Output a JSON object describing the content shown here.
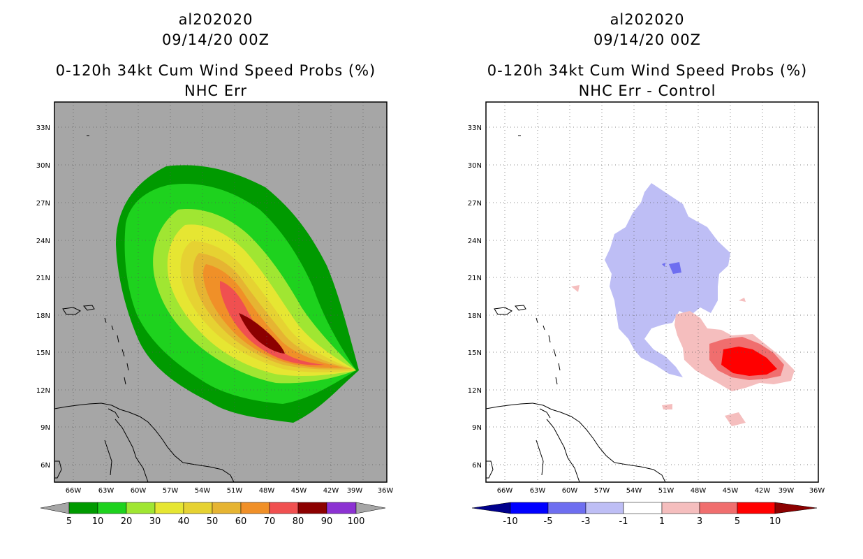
{
  "panels": [
    {
      "storm_id": "al202020",
      "datetime": "09/14/20 00Z",
      "product": "0-120h 34kt Cum Wind Speed Probs (%)",
      "subtitle": "NHC Err",
      "colorbar": {
        "labels": [
          "5",
          "10",
          "20",
          "30",
          "40",
          "50",
          "60",
          "70",
          "80",
          "90",
          "100"
        ],
        "colors": [
          "#009a00",
          "#1ed21e",
          "#a0e632",
          "#e6e632",
          "#e6d232",
          "#e6b432",
          "#f09028",
          "#f05050",
          "#8c0000",
          "#8c32d2"
        ],
        "under_color": "#a6a6a6",
        "over_color": "#a6a6a6"
      }
    },
    {
      "storm_id": "al202020",
      "datetime": "09/14/20 00Z",
      "product": "0-120h 34kt Cum Wind Speed Probs (%)",
      "subtitle": "NHC Err - Control",
      "colorbar": {
        "labels": [
          "-10",
          "-5",
          "-3",
          "-1",
          "1",
          "3",
          "5",
          "10"
        ],
        "colors": [
          "#0000ff",
          "#6e6ef0",
          "#bebef5",
          "#ffffff",
          "#f5bebe",
          "#f06e6e",
          "#ff0000"
        ],
        "under_color": "#00008c",
        "over_color": "#8c0000"
      }
    }
  ],
  "map": {
    "lon_labels": [
      "66W",
      "63W",
      "60W",
      "57W",
      "54W",
      "51W",
      "48W",
      "45W",
      "42W",
      "39W",
      "36W"
    ],
    "lat_labels": [
      "33N",
      "30N",
      "27N",
      "24N",
      "21N",
      "18N",
      "15N",
      "12N",
      "9N",
      "6N"
    ]
  }
}
